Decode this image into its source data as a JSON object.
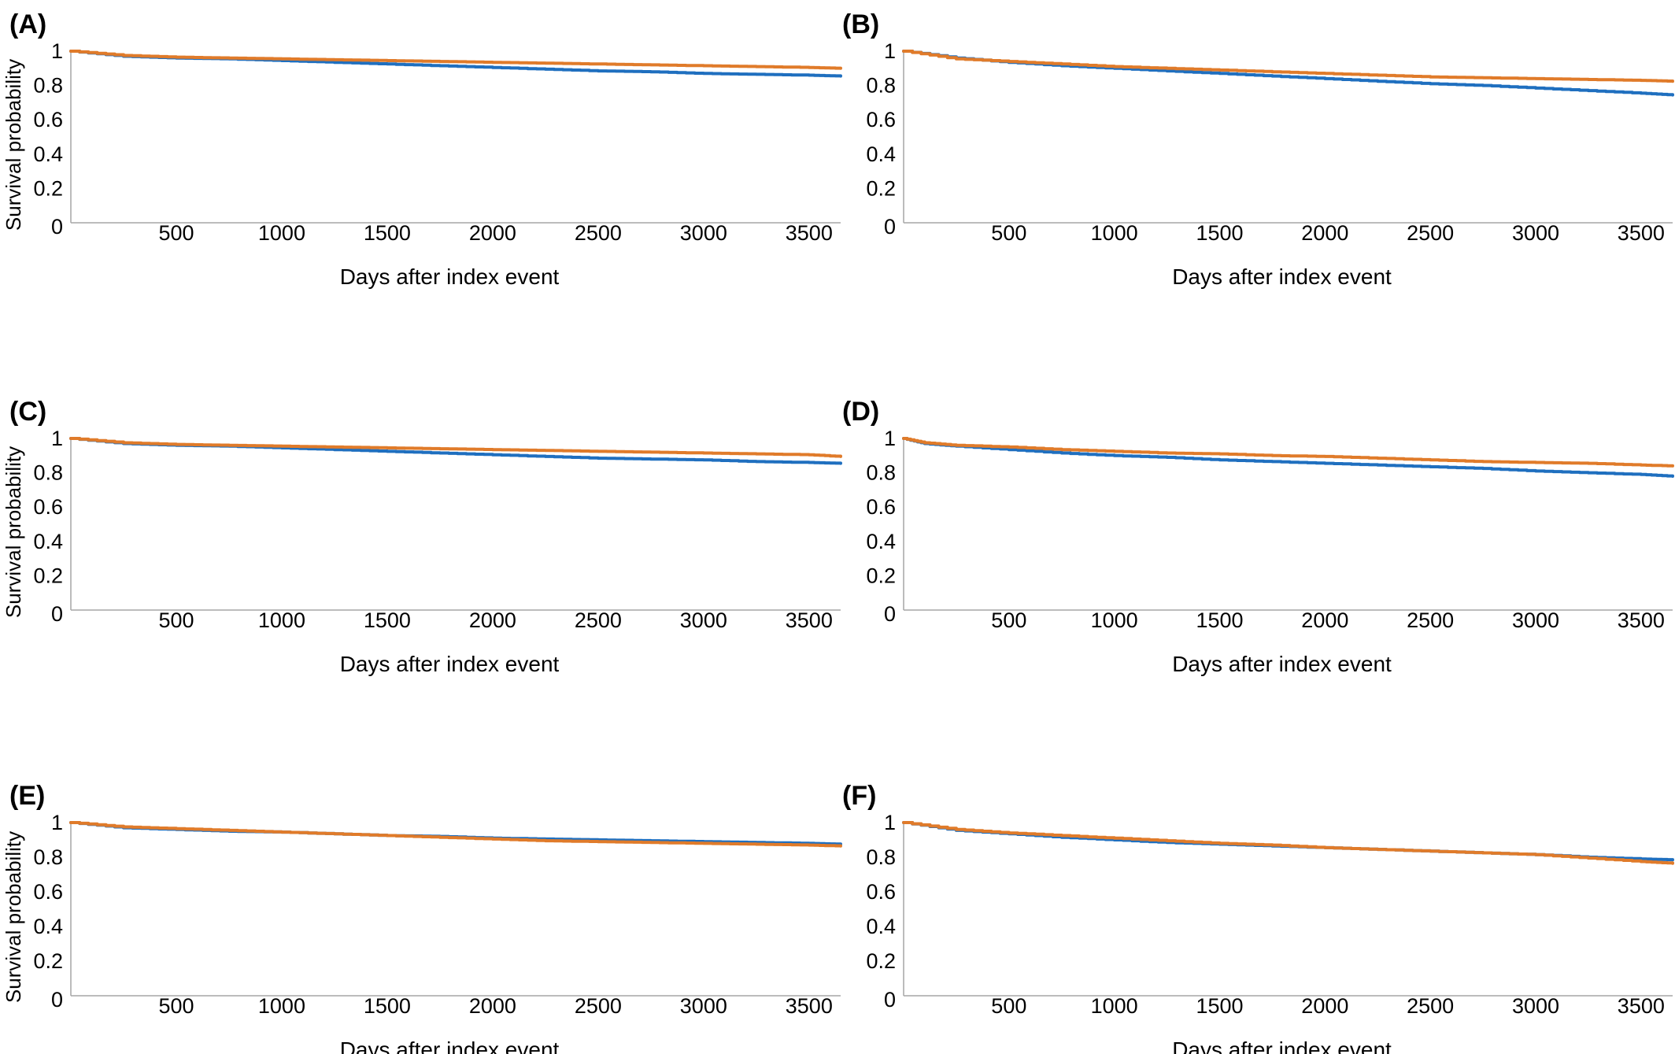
{
  "chart_data": [
    {
      "panel": "(A)",
      "type": "line",
      "xlabel": "Days after index event",
      "ylabel": "Survival probability",
      "xlim": [
        0,
        3650
      ],
      "ylim": [
        0,
        1
      ],
      "xticks": [
        "500",
        "1000",
        "1500",
        "2000",
        "2500",
        "3000",
        "3500"
      ],
      "yticks": [
        "0",
        "0.2",
        "0.4",
        "0.6",
        "0.8",
        "1"
      ],
      "colors": [
        "#1f6fbf",
        "#e07b2a"
      ],
      "series": [
        {
          "x": [
            0,
            250,
            500,
            750,
            1000,
            1250,
            1500,
            1750,
            2000,
            2250,
            2500,
            2750,
            3000,
            3250,
            3500,
            3650
          ],
          "y": [
            1.0,
            0.97,
            0.96,
            0.955,
            0.945,
            0.935,
            0.925,
            0.915,
            0.905,
            0.895,
            0.885,
            0.88,
            0.87,
            0.865,
            0.86,
            0.855
          ]
        },
        {
          "x": [
            0,
            250,
            500,
            750,
            1000,
            1250,
            1500,
            1750,
            2000,
            2250,
            2500,
            2750,
            3000,
            3250,
            3500,
            3650
          ],
          "y": [
            1.0,
            0.975,
            0.965,
            0.96,
            0.955,
            0.95,
            0.945,
            0.94,
            0.935,
            0.93,
            0.925,
            0.92,
            0.915,
            0.91,
            0.905,
            0.9
          ]
        }
      ]
    },
    {
      "panel": "(B)",
      "type": "line",
      "xlabel": "Days after index event",
      "ylabel": "",
      "xlim": [
        0,
        3650
      ],
      "ylim": [
        0,
        1
      ],
      "xticks": [
        "500",
        "1000",
        "1500",
        "2000",
        "2500",
        "3000",
        "3500"
      ],
      "yticks": [
        "0",
        "0.2",
        "0.4",
        "0.6",
        "0.8",
        "1"
      ],
      "colors": [
        "#1f6fbf",
        "#e07b2a"
      ],
      "series": [
        {
          "x": [
            0,
            250,
            500,
            750,
            1000,
            1250,
            1500,
            1750,
            2000,
            2250,
            2500,
            2750,
            3000,
            3250,
            3500,
            3650
          ],
          "y": [
            1.0,
            0.96,
            0.935,
            0.915,
            0.9,
            0.885,
            0.87,
            0.855,
            0.84,
            0.825,
            0.81,
            0.8,
            0.785,
            0.77,
            0.755,
            0.745
          ]
        },
        {
          "x": [
            0,
            250,
            500,
            750,
            1000,
            1250,
            1500,
            1750,
            2000,
            2250,
            2500,
            2750,
            3000,
            3250,
            3500,
            3650
          ],
          "y": [
            1.0,
            0.955,
            0.94,
            0.925,
            0.91,
            0.9,
            0.89,
            0.88,
            0.87,
            0.86,
            0.85,
            0.845,
            0.84,
            0.835,
            0.83,
            0.825
          ]
        }
      ]
    },
    {
      "panel": "(C)",
      "type": "line",
      "xlabel": "Days after index event",
      "ylabel": "Survival probability",
      "xlim": [
        0,
        3650
      ],
      "ylim": [
        0,
        1
      ],
      "xticks": [
        "500",
        "1000",
        "1500",
        "2000",
        "2500",
        "3000",
        "3500"
      ],
      "yticks": [
        "0",
        "0.2",
        "0.4",
        "0.6",
        "0.8",
        "1"
      ],
      "colors": [
        "#1f6fbf",
        "#e07b2a"
      ],
      "series": [
        {
          "x": [
            0,
            250,
            500,
            750,
            1000,
            1250,
            1500,
            1750,
            2000,
            2250,
            2500,
            2750,
            3000,
            3250,
            3500,
            3650
          ],
          "y": [
            1.0,
            0.97,
            0.96,
            0.955,
            0.945,
            0.935,
            0.925,
            0.915,
            0.905,
            0.895,
            0.885,
            0.88,
            0.875,
            0.865,
            0.86,
            0.855
          ]
        },
        {
          "x": [
            0,
            250,
            500,
            750,
            1000,
            1250,
            1500,
            1750,
            2000,
            2250,
            2500,
            2750,
            3000,
            3250,
            3500,
            3650
          ],
          "y": [
            1.0,
            0.975,
            0.965,
            0.96,
            0.955,
            0.95,
            0.945,
            0.94,
            0.935,
            0.93,
            0.925,
            0.92,
            0.915,
            0.91,
            0.905,
            0.895
          ]
        }
      ]
    },
    {
      "panel": "(D)",
      "type": "line",
      "xlabel": "Days after index event",
      "ylabel": "",
      "xlim": [
        0,
        3650
      ],
      "ylim": [
        0,
        1
      ],
      "xticks": [
        "500",
        "1000",
        "1500",
        "2000",
        "2500",
        "3000",
        "3500"
      ],
      "yticks": [
        "0",
        "0.2",
        "0.4",
        "0.6",
        "0.8",
        "1"
      ],
      "colors": [
        "#1f6fbf",
        "#e07b2a"
      ],
      "series": [
        {
          "x": [
            0,
            100,
            250,
            500,
            750,
            1000,
            1250,
            1500,
            1750,
            2000,
            2250,
            2500,
            2750,
            3000,
            3250,
            3500,
            3650
          ],
          "y": [
            1.0,
            0.97,
            0.955,
            0.935,
            0.915,
            0.9,
            0.89,
            0.875,
            0.865,
            0.855,
            0.845,
            0.835,
            0.825,
            0.81,
            0.8,
            0.79,
            0.78
          ]
        },
        {
          "x": [
            0,
            100,
            250,
            500,
            750,
            1000,
            1250,
            1500,
            1750,
            2000,
            2250,
            2500,
            2750,
            3000,
            3250,
            3500,
            3650
          ],
          "y": [
            1.0,
            0.975,
            0.96,
            0.95,
            0.935,
            0.925,
            0.915,
            0.91,
            0.9,
            0.895,
            0.885,
            0.875,
            0.865,
            0.86,
            0.855,
            0.845,
            0.84
          ]
        }
      ]
    },
    {
      "panel": "(E)",
      "type": "line",
      "xlabel": "Days after index event",
      "ylabel": "Survival probability",
      "xlim": [
        0,
        3650
      ],
      "ylim": [
        0,
        1
      ],
      "xticks": [
        "500",
        "1000",
        "1500",
        "2000",
        "2500",
        "3000",
        "3500"
      ],
      "yticks": [
        "0",
        "0.2",
        "0.4",
        "0.6",
        "0.8",
        "1"
      ],
      "colors": [
        "#1f6fbf",
        "#e07b2a"
      ],
      "series": [
        {
          "x": [
            0,
            250,
            500,
            750,
            1000,
            1250,
            1500,
            1750,
            2000,
            2250,
            2500,
            2750,
            3000,
            3250,
            3500,
            3650
          ],
          "y": [
            1.0,
            0.97,
            0.96,
            0.95,
            0.945,
            0.935,
            0.925,
            0.92,
            0.91,
            0.905,
            0.9,
            0.895,
            0.89,
            0.885,
            0.88,
            0.875
          ]
        },
        {
          "x": [
            0,
            250,
            500,
            750,
            1000,
            1250,
            1500,
            1750,
            2000,
            2250,
            2500,
            2750,
            3000,
            3250,
            3500,
            3650
          ],
          "y": [
            1.0,
            0.975,
            0.965,
            0.955,
            0.945,
            0.935,
            0.925,
            0.915,
            0.905,
            0.895,
            0.89,
            0.885,
            0.88,
            0.875,
            0.87,
            0.865
          ]
        }
      ]
    },
    {
      "panel": "(F)",
      "type": "line",
      "xlabel": "Days after index event",
      "ylabel": "",
      "xlim": [
        0,
        3650
      ],
      "ylim": [
        0,
        1
      ],
      "xticks": [
        "500",
        "1000",
        "1500",
        "2000",
        "2500",
        "3000",
        "3500"
      ],
      "yticks": [
        "0",
        "0.2",
        "0.4",
        "0.6",
        "0.8",
        "1"
      ],
      "colors": [
        "#1f6fbf",
        "#e07b2a"
      ],
      "series": [
        {
          "x": [
            0,
            250,
            500,
            750,
            1000,
            1250,
            1500,
            1750,
            2000,
            2250,
            2500,
            2750,
            3000,
            3250,
            3500,
            3650
          ],
          "y": [
            1.0,
            0.955,
            0.935,
            0.915,
            0.9,
            0.885,
            0.875,
            0.865,
            0.855,
            0.845,
            0.835,
            0.825,
            0.815,
            0.8,
            0.79,
            0.785
          ]
        },
        {
          "x": [
            0,
            250,
            500,
            750,
            1000,
            1250,
            1500,
            1750,
            2000,
            2250,
            2500,
            2750,
            3000,
            3250,
            3500,
            3650
          ],
          "y": [
            1.0,
            0.96,
            0.94,
            0.925,
            0.91,
            0.895,
            0.88,
            0.87,
            0.855,
            0.845,
            0.835,
            0.825,
            0.815,
            0.795,
            0.775,
            0.765
          ]
        }
      ]
    }
  ]
}
